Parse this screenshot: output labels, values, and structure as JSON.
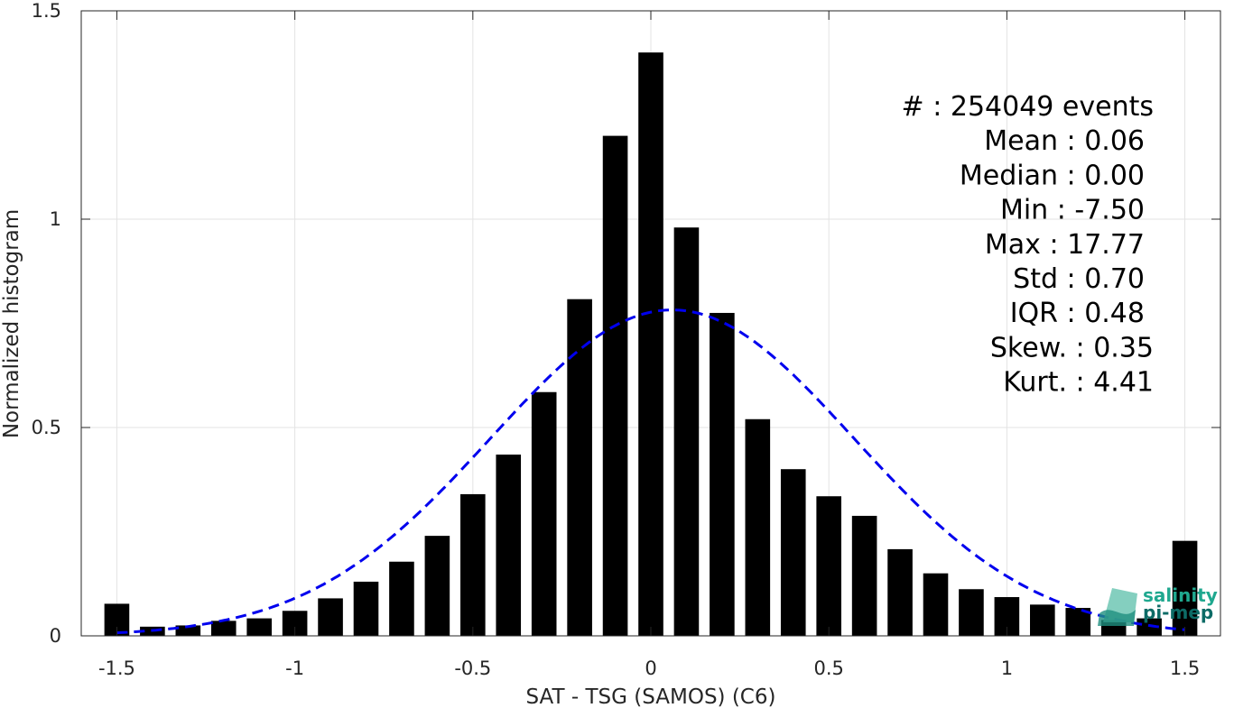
{
  "chart_data": {
    "type": "bar",
    "xlabel": "SAT - TSG (SAMOS) (C6)",
    "ylabel": "Normalized histogram",
    "xlim": [
      -1.6,
      1.6
    ],
    "ylim": [
      0,
      1.5
    ],
    "x_ticks": [
      "-1.5",
      "-1",
      "-0.5",
      "0",
      "0.5",
      "1",
      "1.5"
    ],
    "x_tick_values": [
      -1.5,
      -1,
      -0.5,
      0,
      0.5,
      1,
      1.5
    ],
    "y_ticks": [
      "0",
      "0.5",
      "1",
      "1.5"
    ],
    "y_tick_values": [
      0,
      0.5,
      1,
      1.5
    ],
    "grid": true,
    "bar_color": "#000000",
    "curve_color": "#0000ee",
    "x": [
      -1.5,
      -1.4,
      -1.3,
      -1.2,
      -1.1,
      -1.0,
      -0.9,
      -0.8,
      -0.7,
      -0.6,
      -0.5,
      -0.4,
      -0.3,
      -0.2,
      -0.1,
      0.0,
      0.1,
      0.2,
      0.3,
      0.4,
      0.5,
      0.6,
      0.7,
      0.8,
      0.9,
      1.0,
      1.1,
      1.2,
      1.3,
      1.4,
      1.5
    ],
    "values": [
      0.077,
      0.022,
      0.025,
      0.036,
      0.042,
      0.06,
      0.09,
      0.13,
      0.178,
      0.24,
      0.34,
      0.435,
      0.585,
      0.808,
      1.2,
      1.4,
      0.98,
      0.775,
      0.52,
      0.4,
      0.335,
      0.288,
      0.208,
      0.15,
      0.112,
      0.093,
      0.075,
      0.067,
      0.038,
      0.042,
      0.228
    ],
    "series": [
      {
        "type": "bar",
        "values_key": "values"
      },
      {
        "type": "gaussian_fit",
        "line_style": "dashed",
        "mean": 0.06,
        "std": 0.51
      }
    ],
    "stats": [
      {
        "label": "#  : 254049 events"
      },
      {
        "label": "Mean : 0.06"
      },
      {
        "label": "Median : 0.00"
      },
      {
        "label": "Min : -7.50"
      },
      {
        "label": "Max : 17.77"
      },
      {
        "label": "Std : 0.70"
      },
      {
        "label": "IQR : 0.48"
      },
      {
        "label": "Skew. : 0.35"
      },
      {
        "label": "Kurt. : 4.41"
      }
    ]
  },
  "logo": {
    "line1": "salinity",
    "line2": "pi-mep",
    "color1": "#1fa88f",
    "color2": "#0d6b66"
  }
}
